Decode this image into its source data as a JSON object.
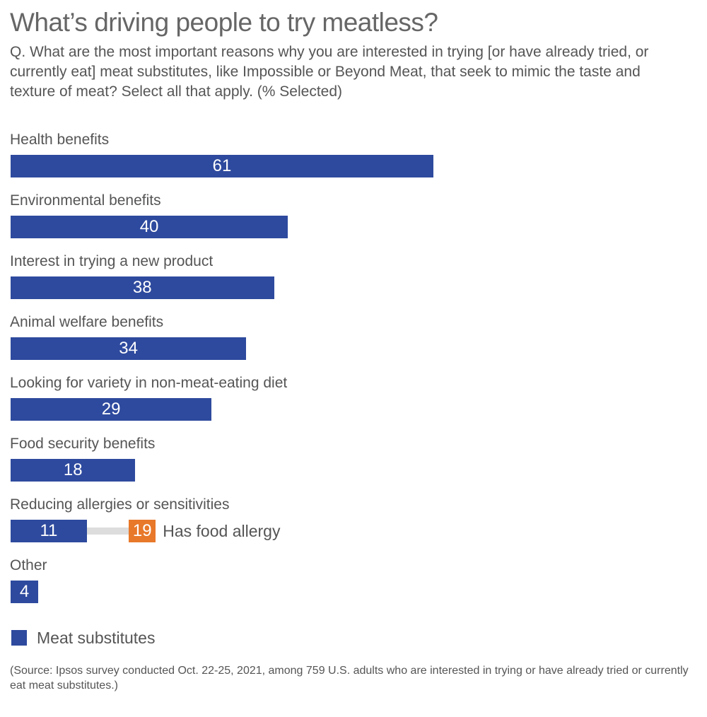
{
  "chart_data": {
    "type": "bar",
    "title": "What’s driving people to try meatless?",
    "subtitle": "Q. What are the most important reasons why you are interested in trying [or have already tried, or currently eat] meat substitutes, like Impossible or Beyond Meat, that seek to mimic the taste and texture of meat? Select all that apply. (% Selected)",
    "categories": [
      "Health benefits",
      "Environmental benefits",
      "Interest in trying a new product",
      "Animal welfare benefits",
      "Looking for variety in non-meat-eating diet",
      "Food security benefits",
      "Reducing allergies or sensitivities",
      "Other"
    ],
    "series": [
      {
        "name": "Meat substitutes",
        "values": [
          61,
          40,
          38,
          34,
          29,
          18,
          11,
          4
        ],
        "color": "#2e4a9e"
      }
    ],
    "annotation": {
      "category": "Reducing allergies or sensitivities",
      "value": 19,
      "label": "Has food allergy",
      "color": "#e8782a"
    },
    "xlim": [
      0,
      100
    ],
    "grid": false,
    "legend": "bottom-left",
    "source": "(Source: Ipsos survey conducted Oct. 22-25, 2021, among 759 U.S. adults who are interested in trying or have already tried or currently eat meat substitutes.)"
  }
}
